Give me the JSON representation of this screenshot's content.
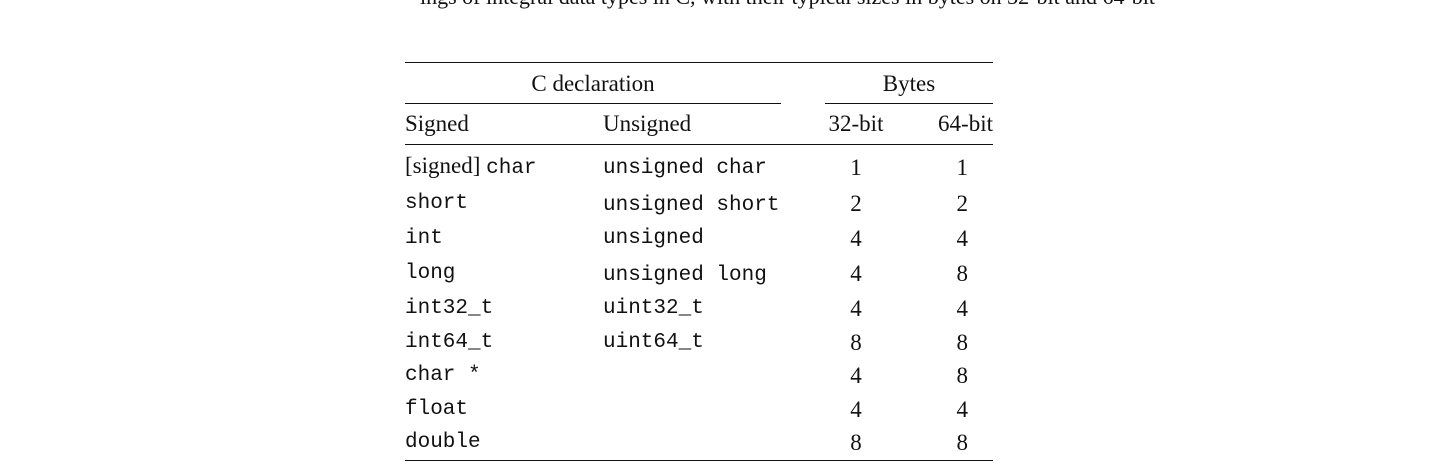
{
  "context_text": "ings of integral data types in C, with their typical sizes in bytes on 32-bit and 64-bit",
  "table": {
    "group_headers": {
      "c_declaration": "C declaration",
      "bytes": "Bytes"
    },
    "column_headers": {
      "signed": "Signed",
      "unsigned": "Unsigned",
      "bits32": "32-bit",
      "bits64": "64-bit"
    },
    "rows": [
      {
        "signed_prefix": "[signed] ",
        "signed": "char",
        "unsigned_prefix": "unsigned ",
        "unsigned": "char",
        "b32": "1",
        "b64": "1"
      },
      {
        "signed_prefix": "",
        "signed": "short",
        "unsigned_prefix": "unsigned ",
        "unsigned": "short",
        "b32": "2",
        "b64": "2"
      },
      {
        "signed_prefix": "",
        "signed": "int",
        "unsigned_prefix": "",
        "unsigned": "unsigned",
        "b32": "4",
        "b64": "4"
      },
      {
        "signed_prefix": "",
        "signed": "long",
        "unsigned_prefix": "unsigned ",
        "unsigned": "long",
        "b32": "4",
        "b64": "8"
      },
      {
        "signed_prefix": "",
        "signed": "int32_t",
        "unsigned_prefix": "",
        "unsigned": "uint32_t",
        "b32": "4",
        "b64": "4"
      },
      {
        "signed_prefix": "",
        "signed": "int64_t",
        "unsigned_prefix": "",
        "unsigned": "uint64_t",
        "b32": "8",
        "b64": "8"
      },
      {
        "signed_prefix": "",
        "signed": "char *",
        "unsigned_prefix": "",
        "unsigned": "",
        "b32": "4",
        "b64": "8"
      },
      {
        "signed_prefix": "",
        "signed": "float",
        "unsigned_prefix": "",
        "unsigned": "",
        "b32": "4",
        "b64": "4"
      },
      {
        "signed_prefix": "",
        "signed": "double",
        "unsigned_prefix": "",
        "unsigned": "",
        "b32": "8",
        "b64": "8"
      }
    ]
  }
}
